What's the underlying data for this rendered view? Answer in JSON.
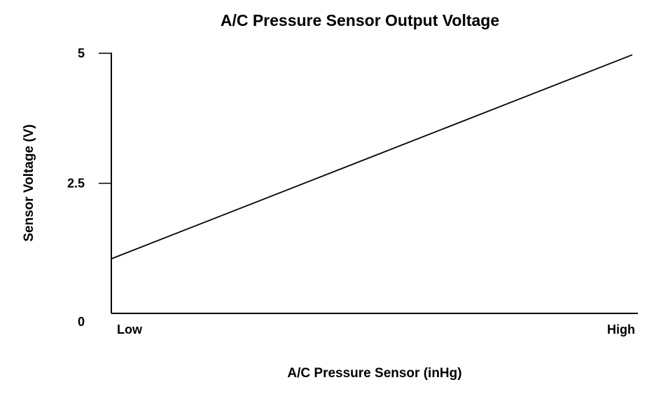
{
  "chart_data": {
    "type": "line",
    "title": "A/C Pressure Sensor Output Voltage",
    "xlabel": "A/C Pressure Sensor (inHg)",
    "ylabel": "Sensor Voltage (V)",
    "x_ticks": [
      "Low",
      "High"
    ],
    "y_ticks": [
      "0",
      "2.5",
      "5"
    ],
    "ylim": [
      0,
      5
    ],
    "xlim": [
      0,
      1
    ],
    "grid": false,
    "series": [
      {
        "x": [
          0,
          1
        ],
        "y": [
          1.05,
          4.97
        ]
      }
    ],
    "colors": {
      "line": "#000000",
      "axis": "#000000",
      "background": "#ffffff"
    }
  }
}
